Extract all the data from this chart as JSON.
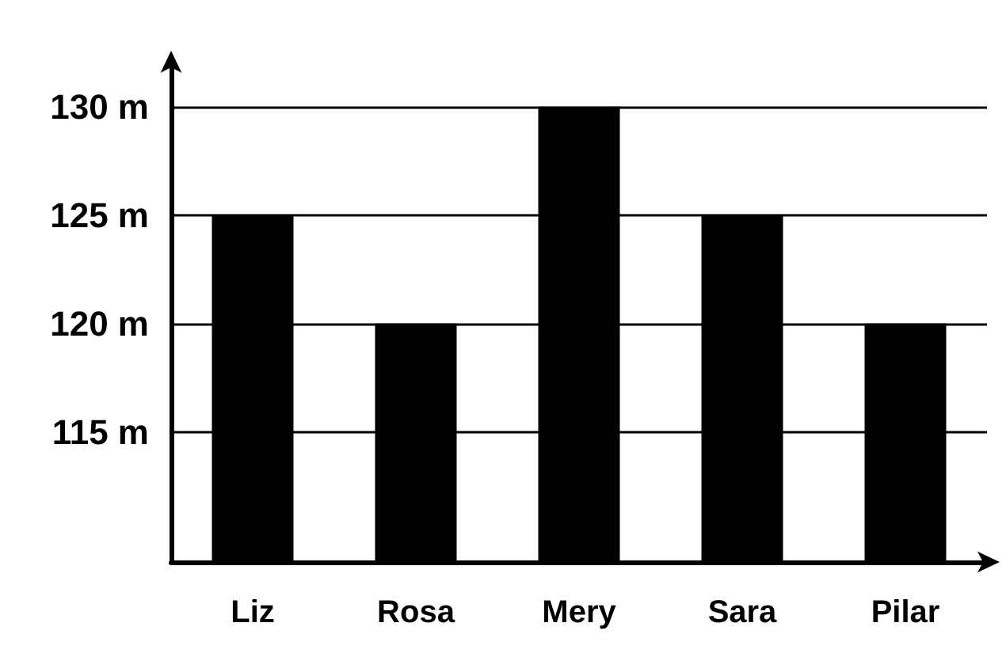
{
  "chart_data": {
    "type": "bar",
    "categories": [
      "Liz",
      "Rosa",
      "Mery",
      "Sara",
      "Pilar"
    ],
    "values": [
      125,
      120,
      130,
      125,
      120
    ],
    "color": "#000000",
    "ylim": [
      109,
      132
    ],
    "yticks": [
      {
        "value": 115,
        "label": "115 m"
      },
      {
        "value": 120,
        "label": "120 m"
      },
      {
        "value": 125,
        "label": "125 m"
      },
      {
        "value": 130,
        "label": "130 m"
      }
    ],
    "grid": "y"
  }
}
